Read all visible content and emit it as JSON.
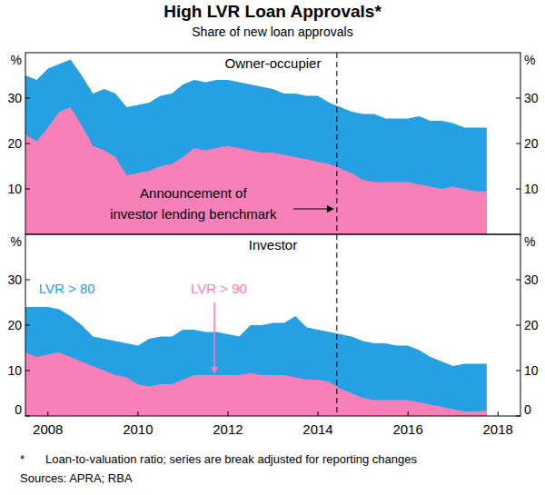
{
  "title": "High LVR Loan Approvals*",
  "subtitle": "Share of new loan approvals",
  "footnote_marker": "*",
  "footnote": "Loan-to-valuation ratio; series are break adjusted for reporting changes",
  "sources": "Sources: APRA; RBA",
  "announcement": {
    "lines": [
      "Announcement of",
      "investor lending benchmark"
    ],
    "x": 2014.92
  },
  "chart_data": [
    {
      "type": "area",
      "title": "Owner-occupier",
      "stacked": false,
      "grid": false,
      "tick_labels": "y",
      "x": [
        2008,
        2008.25,
        2008.5,
        2008.75,
        2009,
        2009.25,
        2009.5,
        2009.75,
        2010,
        2010.25,
        2010.5,
        2010.75,
        2011,
        2011.25,
        2011.5,
        2011.75,
        2012,
        2012.25,
        2012.5,
        2012.75,
        2013,
        2013.25,
        2013.5,
        2013.75,
        2014,
        2014.25,
        2014.5,
        2014.75,
        2015,
        2015.25,
        2015.5,
        2015.75,
        2016,
        2016.25,
        2016.5,
        2016.75,
        2017,
        2017.25,
        2017.5,
        2017.75,
        2018,
        2018.25
      ],
      "series": [
        {
          "color": "#24a0e3",
          "values": [
            35,
            34,
            36.5,
            37.5,
            38.5,
            35,
            31,
            32,
            31,
            28,
            28.5,
            29,
            30.5,
            31,
            33,
            34,
            33.5,
            34,
            34,
            33.5,
            33,
            32.5,
            32,
            31,
            31,
            30.5,
            30.5,
            29,
            28,
            27,
            26.5,
            26.5,
            25.5,
            25.5,
            25.5,
            26,
            25,
            25,
            24.5,
            23.5,
            23.5,
            23.5
          ]
        },
        {
          "color": "#f780b8",
          "values": [
            22,
            20.5,
            23.5,
            27,
            28,
            24,
            19.5,
            18.5,
            17,
            13,
            13.5,
            14,
            15,
            15.5,
            17,
            19,
            18.5,
            19,
            19.5,
            19,
            18.5,
            18,
            18,
            17.5,
            17,
            16.5,
            16,
            15.5,
            14.5,
            13.5,
            12,
            11.5,
            11.5,
            11.5,
            11.5,
            11,
            10.5,
            10,
            10.5,
            10,
            9.5,
            9.5
          ]
        }
      ],
      "xlim": [
        2008,
        2019
      ],
      "ylim": [
        0,
        40
      ],
      "yticks": [
        10,
        20,
        30
      ],
      "ylabel": "%"
    },
    {
      "type": "area",
      "title": "Investor",
      "stacked": false,
      "grid": false,
      "x": [
        2008,
        2008.25,
        2008.5,
        2008.75,
        2009,
        2009.25,
        2009.5,
        2009.75,
        2010,
        2010.25,
        2010.5,
        2010.75,
        2011,
        2011.25,
        2011.5,
        2011.75,
        2012,
        2012.25,
        2012.5,
        2012.75,
        2013,
        2013.25,
        2013.5,
        2013.75,
        2014,
        2014.25,
        2014.5,
        2014.75,
        2015,
        2015.25,
        2015.5,
        2015.75,
        2016,
        2016.25,
        2016.5,
        2016.75,
        2017,
        2017.25,
        2017.5,
        2017.75,
        2018,
        2018.25
      ],
      "series": [
        {
          "name": "LVR > 80",
          "color": "#24a0e3",
          "values": [
            24,
            24,
            24,
            23.5,
            22,
            20,
            17.5,
            17,
            16.5,
            16,
            15.5,
            17,
            17.5,
            17.5,
            19,
            19,
            18.5,
            18.5,
            18,
            17.5,
            20,
            20,
            20.5,
            20.5,
            22,
            19.5,
            19,
            18.5,
            18,
            17.5,
            16.5,
            16,
            16,
            15.5,
            15.5,
            14.5,
            13,
            12,
            11,
            11.5,
            11.5,
            11.5
          ]
        },
        {
          "name": "LVR > 90",
          "color": "#f780b8",
          "values": [
            14,
            13,
            13.5,
            14,
            13,
            12,
            11,
            10,
            9,
            8.5,
            7,
            6.5,
            7,
            7,
            8,
            9,
            9,
            9,
            9,
            9,
            9.5,
            9,
            9,
            9,
            8.5,
            8,
            8,
            7.5,
            6,
            5,
            4,
            3.5,
            3.5,
            3.5,
            3.5,
            3,
            2.5,
            2,
            1.5,
            1,
            1,
            1.2
          ]
        }
      ],
      "xlim": [
        2008,
        2019
      ],
      "ylim": [
        0,
        40
      ],
      "yticks": [
        0,
        10,
        20,
        30
      ],
      "ylabel": "%",
      "xticks": [
        {
          "value": 2008.5,
          "label": "2008"
        },
        {
          "value": 2010.5,
          "label": "2010"
        },
        {
          "value": 2012.5,
          "label": "2012"
        },
        {
          "value": 2014.5,
          "label": "2014"
        },
        {
          "value": 2016.5,
          "label": "2016"
        },
        {
          "value": 2018.5,
          "label": "2018"
        }
      ]
    }
  ]
}
